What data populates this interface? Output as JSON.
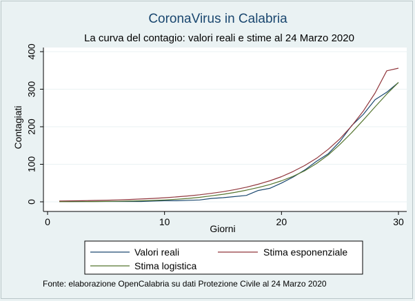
{
  "chart_data": {
    "type": "line",
    "title": "CoronaVirus in Calabria",
    "subtitle": "La curva del contagio: valori reali e stime al 24 Marzo 2020",
    "xlabel": "Giorni",
    "ylabel": "Contagiati",
    "xlim": [
      0,
      30
    ],
    "ylim": [
      0,
      400
    ],
    "xticks": [
      0,
      10,
      20,
      30
    ],
    "yticks": [
      0,
      100,
      200,
      300,
      400
    ],
    "grid": "horizontal",
    "legend_position": "bottom",
    "note": "Fonte: elaborazione OpenCalabria su dati Protezione Civile al 24 Marzo 2020",
    "series": [
      {
        "name": "Valori reali",
        "color": "#1a476f",
        "x": [
          1,
          2,
          3,
          4,
          5,
          6,
          7,
          8,
          9,
          10,
          11,
          12,
          13,
          14,
          15,
          16,
          17,
          18,
          19,
          20,
          21,
          22,
          23,
          24,
          25,
          26,
          27,
          28,
          29,
          30
        ],
        "y": [
          1,
          1,
          1,
          1,
          1,
          1,
          1,
          1,
          2,
          3,
          3,
          4,
          5,
          9,
          11,
          14,
          17,
          30,
          36,
          50,
          66,
          85,
          108,
          128,
          161,
          203,
          233,
          272,
          292,
          318
        ]
      },
      {
        "name": "Stima esponenziale",
        "color": "#90353b",
        "x": [
          1,
          2,
          3,
          4,
          5,
          6,
          7,
          8,
          9,
          10,
          11,
          12,
          13,
          14,
          15,
          16,
          17,
          18,
          19,
          20,
          21,
          22,
          23,
          24,
          25,
          26,
          27,
          28,
          29,
          30
        ],
        "y": [
          2.1,
          2.5,
          3,
          3.6,
          4.3,
          5.2,
          6.2,
          7.5,
          9,
          10.8,
          13,
          15.6,
          18.7,
          22.5,
          27,
          32.4,
          38.9,
          46.7,
          56,
          67,
          81,
          97,
          116,
          140,
          168,
          202,
          242,
          290,
          349,
          356
        ]
      },
      {
        "name": "Stima logistica",
        "color": "#55752f",
        "x": [
          1,
          2,
          3,
          4,
          5,
          6,
          7,
          8,
          9,
          10,
          11,
          12,
          13,
          14,
          15,
          16,
          17,
          18,
          19,
          20,
          21,
          22,
          23,
          24,
          25,
          26,
          27,
          28,
          29,
          30
        ],
        "y": [
          0.3,
          0.4,
          0.6,
          0.8,
          1.1,
          1.5,
          2,
          2.7,
          3.7,
          5,
          6.8,
          9,
          12,
          16,
          20,
          25,
          31,
          38,
          46,
          56,
          68,
          83,
          102,
          125,
          153,
          184,
          218,
          253,
          287,
          318
        ]
      }
    ]
  }
}
